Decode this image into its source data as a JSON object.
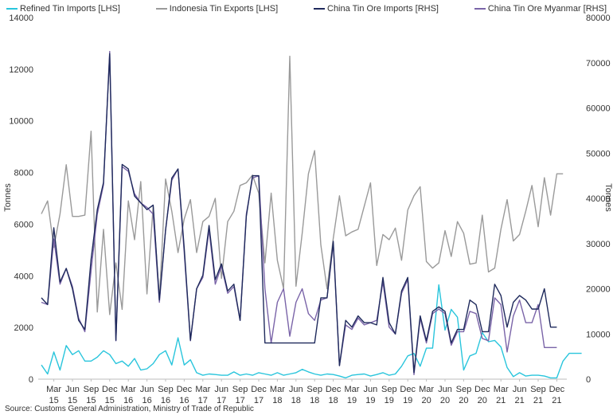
{
  "chart_data": {
    "type": "line",
    "title": "",
    "ylabel": "Tonnes",
    "y2label": "Tonnes",
    "ylim": [
      0,
      14000
    ],
    "y2lim": [
      0,
      80000
    ],
    "yticks": [
      0,
      2000,
      4000,
      6000,
      8000,
      10000,
      12000,
      14000
    ],
    "y2ticks": [
      0,
      10000,
      20000,
      30000,
      40000,
      50000,
      60000,
      70000,
      80000
    ],
    "grid": false,
    "legend_position": "top",
    "x_start_month": "Jan 2015",
    "xtick_labels": [
      {
        "month": "Mar",
        "year": "15"
      },
      {
        "month": "Jun",
        "year": "15"
      },
      {
        "month": "Sep",
        "year": "15"
      },
      {
        "month": "Dec",
        "year": "15"
      },
      {
        "month": "Mar",
        "year": "16"
      },
      {
        "month": "Jun",
        "year": "16"
      },
      {
        "month": "Sep",
        "year": "16"
      },
      {
        "month": "Dec",
        "year": "16"
      },
      {
        "month": "Mar",
        "year": "17"
      },
      {
        "month": "Jun",
        "year": "17"
      },
      {
        "month": "Sep",
        "year": "17"
      },
      {
        "month": "Dec",
        "year": "17"
      },
      {
        "month": "Mar",
        "year": "18"
      },
      {
        "month": "Jun",
        "year": "18"
      },
      {
        "month": "Sep",
        "year": "18"
      },
      {
        "month": "Dec",
        "year": "18"
      },
      {
        "month": "Mar",
        "year": "19"
      },
      {
        "month": "Jun",
        "year": "19"
      },
      {
        "month": "Sep",
        "year": "19"
      },
      {
        "month": "Dec",
        "year": "19"
      },
      {
        "month": "Mar",
        "year": "20"
      },
      {
        "month": "Jun",
        "year": "20"
      },
      {
        "month": "Sep",
        "year": "20"
      },
      {
        "month": "Dec",
        "year": "20"
      },
      {
        "month": "Mar",
        "year": "21"
      },
      {
        "month": "Jun",
        "year": "21"
      },
      {
        "month": "Sep",
        "year": "21"
      },
      {
        "month": "Dec",
        "year": "21"
      }
    ],
    "series": [
      {
        "name": "Refined Tin Imports [LHS]",
        "axis": "left",
        "color": "#29c5dc",
        "values": [
          550,
          200,
          1050,
          350,
          1300,
          950,
          1100,
          700,
          700,
          850,
          1100,
          950,
          600,
          700,
          500,
          800,
          350,
          400,
          600,
          950,
          1100,
          550,
          1600,
          550,
          750,
          250,
          150,
          200,
          180,
          150,
          150,
          280,
          150,
          200,
          150,
          250,
          200,
          150,
          250,
          150,
          200,
          250,
          380,
          280,
          200,
          150,
          200,
          180,
          120,
          50,
          150,
          180,
          200,
          120,
          180,
          250,
          150,
          200,
          500,
          900,
          1000,
          500,
          1200,
          1200,
          3650,
          1900,
          2700,
          2400,
          350,
          900,
          1000,
          1800,
          1450,
          1500,
          1250,
          450,
          100,
          250,
          120,
          150,
          150,
          120,
          50,
          50,
          700,
          1000,
          1000,
          1000
        ]
      },
      {
        "name": "Indonesia Tin Exports [LHS]",
        "axis": "left",
        "color": "#9a9a9a",
        "values": [
          6400,
          6900,
          5100,
          6400,
          8300,
          6300,
          6300,
          6350,
          9600,
          2600,
          5800,
          2500,
          4500,
          2700,
          6900,
          5400,
          7650,
          3300,
          6700,
          3100,
          7750,
          6500,
          4900,
          6200,
          6950,
          4900,
          6100,
          6300,
          7000,
          3900,
          6100,
          6500,
          7500,
          7600,
          7900,
          7200,
          4500,
          7200,
          4600,
          3500,
          12500,
          3600,
          5650,
          7950,
          8850,
          5200,
          3500,
          5450,
          7100,
          5550,
          5700,
          5800,
          6700,
          7600,
          4400,
          5600,
          5400,
          5850,
          4600,
          6550,
          7100,
          7450,
          4550,
          4300,
          4500,
          5750,
          4750,
          6100,
          5650,
          4450,
          4500,
          6350,
          4150,
          4300,
          5800,
          6950,
          5350,
          5600,
          6500,
          7500,
          5900,
          7800,
          6350,
          7950,
          7950
        ]
      },
      {
        "name": "China Tin Ore Imports [RHS]",
        "axis": "right",
        "color": "#1f2a5c",
        "values": [
          18000,
          16500,
          33500,
          21500,
          24500,
          20000,
          13000,
          11000,
          26500,
          37500,
          43500,
          72000,
          8600,
          47500,
          46500,
          40500,
          39000,
          37500,
          38500,
          17500,
          33000,
          44500,
          46500,
          29000,
          8600,
          20000,
          23000,
          34000,
          22000,
          25500,
          19500,
          21000,
          13000,
          36000,
          45000,
          45000,
          8000,
          8000,
          8000,
          8000,
          8000,
          8000,
          8000,
          8000,
          8000,
          18000,
          18000,
          30500,
          3000,
          13000,
          11500,
          14000,
          12500,
          12500,
          12000,
          22500,
          12500,
          10000,
          19500,
          22500,
          1500,
          14000,
          8500,
          15000,
          16000,
          15000,
          8000,
          11000,
          11000,
          17500,
          16500,
          10500,
          10500,
          21000,
          18500,
          11500,
          17000,
          18500,
          17500,
          15500,
          15500,
          20000,
          11500,
          11500
        ]
      },
      {
        "name": "China Tin Ore Myanmar [RHS]",
        "axis": "right",
        "color": "#7a64a8",
        "values": [
          17000,
          16500,
          31000,
          21000,
          24500,
          20500,
          13500,
          10500,
          24000,
          36500,
          43000,
          72500,
          8500,
          47000,
          46000,
          41000,
          39000,
          38000,
          36500,
          17000,
          33000,
          44000,
          46500,
          28000,
          8500,
          20000,
          22500,
          33000,
          21000,
          25000,
          19000,
          20500,
          13000,
          36500,
          44500,
          45000,
          20000,
          8000,
          17000,
          20000,
          9500,
          17000,
          20000,
          14500,
          13000,
          17500,
          18000,
          30000,
          3000,
          12000,
          11000,
          13500,
          12000,
          12500,
          13000,
          21500,
          11500,
          10000,
          19000,
          22000,
          1000,
          13500,
          8000,
          14500,
          15500,
          14500,
          7500,
          10500,
          10500,
          15000,
          14500,
          9000,
          8500,
          18000,
          16500,
          6000,
          14000,
          17500,
          12500,
          12500,
          16500,
          7000,
          7000,
          7000
        ]
      }
    ],
    "source": "Source: Customs General Administration, Ministry of Trade of Republic"
  }
}
